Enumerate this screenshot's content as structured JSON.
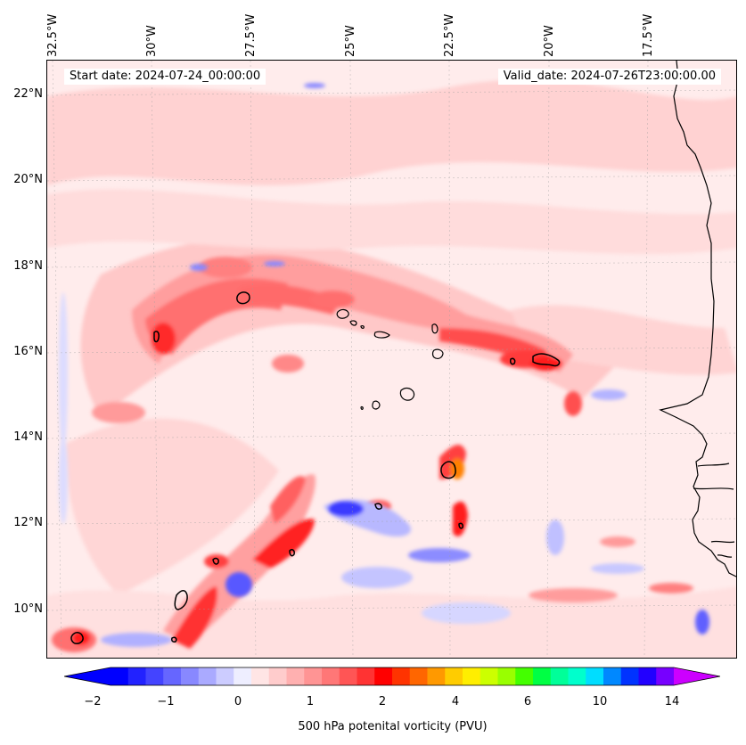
{
  "map": {
    "start_date": "Start date: 2024-07-24_00:00:00",
    "valid_date": "Valid_date: 2024-07-26T23:00:00.00",
    "lon_labels": [
      "32.5°W",
      "30°W",
      "27.5°W",
      "25°W",
      "22.5°W",
      "20°W",
      "17.5°W"
    ],
    "lat_labels": [
      "22°N",
      "20°N",
      "18°N",
      "16°N",
      "14°N",
      "12°N",
      "10°N"
    ],
    "extent": {
      "lon_min": -32.6,
      "lon_max": -15.3,
      "lat_min": 8.9,
      "lat_max": 22.8
    },
    "colors": {
      "ocean_background": "#ffecec",
      "coastline": "#000000",
      "gridline": "#9e9e9e"
    }
  },
  "colorbar": {
    "label": "500 hPa potenital vorticity (PVU)",
    "tick_labels": [
      "−2",
      "−1",
      "0",
      "1",
      "2",
      "4",
      "6",
      "10",
      "14"
    ],
    "colors": [
      "#0000ff",
      "#2222ff",
      "#4444ff",
      "#6666ff",
      "#8888ff",
      "#aaaaff",
      "#ccccff",
      "#eeeeff",
      "#ffe5e5",
      "#ffcccc",
      "#ffb0b0",
      "#ff9494",
      "#ff7777",
      "#ff5555",
      "#ff3333",
      "#ff0000",
      "#ff3300",
      "#ff6600",
      "#ff9900",
      "#ffcc00",
      "#ffee00",
      "#ccff00",
      "#99ff00",
      "#44ff00",
      "#00ff44",
      "#00ff99",
      "#00ffcc",
      "#00ddff",
      "#0088ff",
      "#0033ff",
      "#2200ff",
      "#7700ff"
    ],
    "under_color": "#0000ff",
    "over_color": "#cc00ff"
  }
}
